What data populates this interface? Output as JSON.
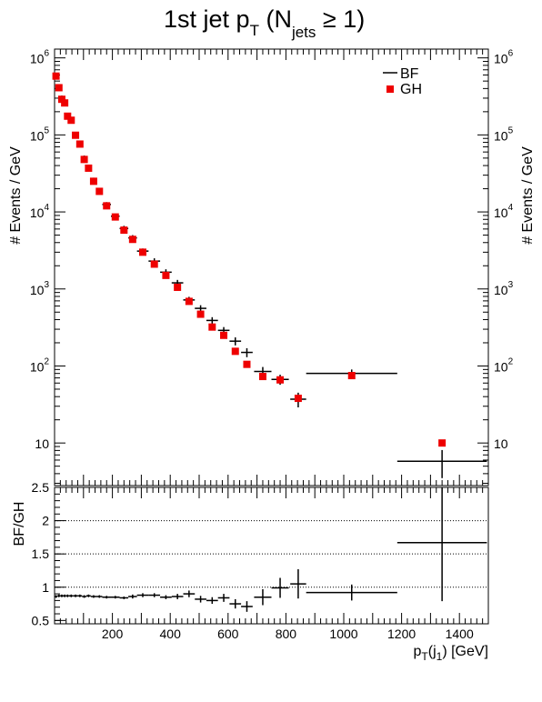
{
  "chart_data": {
    "title": {
      "main": "1st jet p",
      "sub1": "T",
      "mid": " (N",
      "sub2": "jets",
      "tail": " ≥ 1)"
    },
    "type": "scatter",
    "xlabel": {
      "pre": "p",
      "sub1": "T",
      "mid": "(j",
      "sub2": "1",
      "tail": ") [GeV]"
    },
    "xlim": [
      0,
      1500
    ],
    "x_ticks": [
      200,
      400,
      600,
      800,
      1000,
      1200,
      1400
    ],
    "top_panel": {
      "ylabel": "# Events / GeV",
      "yscale": "log",
      "ylim": [
        2.8,
        1300000
      ],
      "y_ticks": [
        {
          "base": "10",
          "exp": "6",
          "value": 1000000
        },
        {
          "base": "10",
          "exp": "5",
          "value": 100000
        },
        {
          "base": "10",
          "exp": "4",
          "value": 10000
        },
        {
          "base": "10",
          "exp": "3",
          "value": 1000
        },
        {
          "base": "10",
          "exp": "2",
          "value": 100
        },
        {
          "base": "10",
          "exp": "",
          "value": 10
        }
      ],
      "legend_position": "top-right",
      "series": [
        {
          "name": "BF",
          "style": "error-bars",
          "color": "#000000",
          "points": [
            {
              "x": 5,
              "xerr": 5,
              "y": 560000,
              "yerr": 25000
            },
            {
              "x": 15,
              "xerr": 5,
              "y": 430000,
              "yerr": 20000
            },
            {
              "x": 25,
              "xerr": 5,
              "y": 310000,
              "yerr": 15000
            },
            {
              "x": 35,
              "xerr": 5,
              "y": 255000,
              "yerr": 12000
            },
            {
              "x": 45,
              "xerr": 5,
              "y": 180000,
              "yerr": 9000
            },
            {
              "x": 57.5,
              "xerr": 7.5,
              "y": 150000,
              "yerr": 7000
            },
            {
              "x": 72.5,
              "xerr": 7.5,
              "y": 98000,
              "yerr": 5000
            },
            {
              "x": 87.5,
              "xerr": 7.5,
              "y": 74000,
              "yerr": 4000
            },
            {
              "x": 102.5,
              "xerr": 7.5,
              "y": 51000,
              "yerr": 3000
            },
            {
              "x": 117.5,
              "xerr": 7.5,
              "y": 38000,
              "yerr": 2500
            },
            {
              "x": 135,
              "xerr": 10,
              "y": 26000,
              "yerr": 1800
            },
            {
              "x": 155,
              "xerr": 10,
              "y": 19000,
              "yerr": 1400
            },
            {
              "x": 180,
              "xerr": 15,
              "y": 12500,
              "yerr": 900
            },
            {
              "x": 210,
              "xerr": 15,
              "y": 8800,
              "yerr": 700
            },
            {
              "x": 240,
              "xerr": 15,
              "y": 6100,
              "yerr": 500
            },
            {
              "x": 270,
              "xerr": 15,
              "y": 4600,
              "yerr": 400
            },
            {
              "x": 305,
              "xerr": 20,
              "y": 3100,
              "yerr": 250
            },
            {
              "x": 345,
              "xerr": 20,
              "y": 2300,
              "yerr": 200
            },
            {
              "x": 385,
              "xerr": 20,
              "y": 1650,
              "yerr": 150
            },
            {
              "x": 425,
              "xerr": 20,
              "y": 1200,
              "yerr": 110
            },
            {
              "x": 465,
              "xerr": 20,
              "y": 720,
              "yerr": 70
            },
            {
              "x": 505,
              "xerr": 20,
              "y": 560,
              "yerr": 55
            },
            {
              "x": 545,
              "xerr": 20,
              "y": 390,
              "yerr": 40
            },
            {
              "x": 585,
              "xerr": 20,
              "y": 290,
              "yerr": 30
            },
            {
              "x": 625,
              "xerr": 20,
              "y": 210,
              "yerr": 25
            },
            {
              "x": 665,
              "xerr": 20,
              "y": 150,
              "yerr": 20
            },
            {
              "x": 720,
              "xerr": 30,
              "y": 85,
              "yerr": 12
            },
            {
              "x": 780,
              "xerr": 30,
              "y": 67,
              "yerr": 10
            },
            {
              "x": 842.5,
              "xerr": 27.5,
              "y": 37,
              "yerr": 8
            },
            {
              "x": 1027.5,
              "xerr": 157.5,
              "y": 80,
              "yerr": 10
            },
            {
              "x": 1340,
              "xerr": 155,
              "y": 5.8,
              "yerr": 2.3
            }
          ]
        },
        {
          "name": "GH",
          "style": "square-markers",
          "color": "#ee0000",
          "points": [
            {
              "x": 5,
              "y": 580000
            },
            {
              "x": 15,
              "y": 410000
            },
            {
              "x": 25,
              "y": 290000
            },
            {
              "x": 35,
              "y": 260000
            },
            {
              "x": 45,
              "y": 175000
            },
            {
              "x": 57.5,
              "y": 155000
            },
            {
              "x": 72.5,
              "y": 99000
            },
            {
              "x": 87.5,
              "y": 76000
            },
            {
              "x": 102.5,
              "y": 48000
            },
            {
              "x": 117.5,
              "y": 37000
            },
            {
              "x": 135,
              "y": 25000
            },
            {
              "x": 155,
              "y": 18500
            },
            {
              "x": 180,
              "y": 12000
            },
            {
              "x": 210,
              "y": 8600
            },
            {
              "x": 240,
              "y": 5800
            },
            {
              "x": 270,
              "y": 4400
            },
            {
              "x": 305,
              "y": 3000
            },
            {
              "x": 345,
              "y": 2100
            },
            {
              "x": 385,
              "y": 1500
            },
            {
              "x": 425,
              "y": 1050
            },
            {
              "x": 465,
              "y": 690
            },
            {
              "x": 505,
              "y": 470
            },
            {
              "x": 545,
              "y": 320
            },
            {
              "x": 585,
              "y": 250
            },
            {
              "x": 625,
              "y": 155
            },
            {
              "x": 665,
              "y": 105
            },
            {
              "x": 720,
              "y": 73
            },
            {
              "x": 780,
              "y": 66
            },
            {
              "x": 842.5,
              "y": 38
            },
            {
              "x": 1027.5,
              "y": 75
            },
            {
              "x": 1340,
              "y": 10
            }
          ]
        }
      ]
    },
    "ratio_panel": {
      "ylabel": "BF/GH",
      "ylim": [
        0.45,
        2.5
      ],
      "y_ticks": [
        {
          "label": "0.5",
          "value": 0.5
        },
        {
          "label": "1",
          "value": 1
        },
        {
          "label": "1.5",
          "value": 1.5
        },
        {
          "label": "2",
          "value": 2
        },
        {
          "label": "2.5",
          "value": 2.5
        }
      ],
      "gridlines": [
        1,
        1.5,
        2
      ],
      "series": [
        {
          "name": "BF/GH",
          "color": "#000000",
          "points": [
            {
              "x": 5,
              "xerr": 5,
              "y": 0.86,
              "yerr": 0.02
            },
            {
              "x": 15,
              "xerr": 5,
              "y": 0.87,
              "yerr": 0.02
            },
            {
              "x": 25,
              "xerr": 5,
              "y": 0.87,
              "yerr": 0.02
            },
            {
              "x": 35,
              "xerr": 5,
              "y": 0.87,
              "yerr": 0.02
            },
            {
              "x": 45,
              "xerr": 5,
              "y": 0.87,
              "yerr": 0.02
            },
            {
              "x": 57.5,
              "xerr": 7.5,
              "y": 0.87,
              "yerr": 0.02
            },
            {
              "x": 72.5,
              "xerr": 7.5,
              "y": 0.87,
              "yerr": 0.02
            },
            {
              "x": 87.5,
              "xerr": 7.5,
              "y": 0.87,
              "yerr": 0.02
            },
            {
              "x": 102.5,
              "xerr": 7.5,
              "y": 0.86,
              "yerr": 0.02
            },
            {
              "x": 117.5,
              "xerr": 7.5,
              "y": 0.87,
              "yerr": 0.02
            },
            {
              "x": 135,
              "xerr": 10,
              "y": 0.86,
              "yerr": 0.02
            },
            {
              "x": 155,
              "xerr": 10,
              "y": 0.86,
              "yerr": 0.02
            },
            {
              "x": 180,
              "xerr": 15,
              "y": 0.85,
              "yerr": 0.02
            },
            {
              "x": 210,
              "xerr": 15,
              "y": 0.85,
              "yerr": 0.02
            },
            {
              "x": 240,
              "xerr": 15,
              "y": 0.84,
              "yerr": 0.02
            },
            {
              "x": 270,
              "xerr": 15,
              "y": 0.86,
              "yerr": 0.03
            },
            {
              "x": 305,
              "xerr": 20,
              "y": 0.88,
              "yerr": 0.03
            },
            {
              "x": 345,
              "xerr": 20,
              "y": 0.88,
              "yerr": 0.03
            },
            {
              "x": 385,
              "xerr": 20,
              "y": 0.85,
              "yerr": 0.03
            },
            {
              "x": 425,
              "xerr": 20,
              "y": 0.86,
              "yerr": 0.04
            },
            {
              "x": 465,
              "xerr": 20,
              "y": 0.9,
              "yerr": 0.05
            },
            {
              "x": 505,
              "xerr": 20,
              "y": 0.82,
              "yerr": 0.05
            },
            {
              "x": 545,
              "xerr": 20,
              "y": 0.8,
              "yerr": 0.05
            },
            {
              "x": 585,
              "xerr": 20,
              "y": 0.84,
              "yerr": 0.06
            },
            {
              "x": 625,
              "xerr": 20,
              "y": 0.75,
              "yerr": 0.07
            },
            {
              "x": 665,
              "xerr": 20,
              "y": 0.71,
              "yerr": 0.08
            },
            {
              "x": 720,
              "xerr": 30,
              "y": 0.85,
              "yerr": 0.12
            },
            {
              "x": 780,
              "xerr": 30,
              "y": 0.99,
              "yerr": 0.15
            },
            {
              "x": 842.5,
              "xerr": 27.5,
              "y": 1.05,
              "yerr": 0.22
            },
            {
              "x": 1027.5,
              "xerr": 157.5,
              "y": 0.92,
              "yerr": 0.12
            },
            {
              "x": 1340,
              "xerr": 155,
              "y": 1.67,
              "yerr": 0.88
            }
          ]
        }
      ]
    },
    "legend": [
      {
        "label": "BF",
        "symbol": "line"
      },
      {
        "label": "GH",
        "symbol": "square"
      }
    ]
  }
}
